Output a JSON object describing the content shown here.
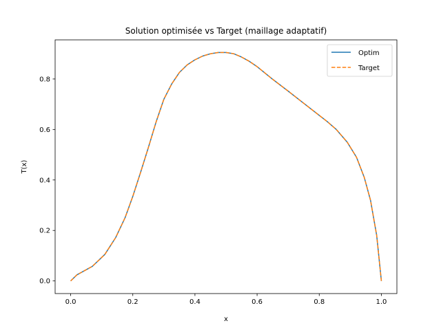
{
  "chart_data": {
    "type": "line",
    "title": "Solution optimisée vs Target (maillage adaptatif)",
    "xlabel": "x",
    "ylabel": "T(x)",
    "xlim": [
      -0.05,
      1.05
    ],
    "ylim": [
      -0.05,
      0.955
    ],
    "xticks": [
      0.0,
      0.2,
      0.4,
      0.6,
      0.8,
      1.0
    ],
    "xtick_labels": [
      "0.0",
      "0.2",
      "0.4",
      "0.6",
      "0.8",
      "1.0"
    ],
    "yticks": [
      0.0,
      0.2,
      0.4,
      0.6,
      0.8
    ],
    "ytick_labels": [
      "0.0",
      "0.2",
      "0.4",
      "0.6",
      "0.8"
    ],
    "grid": false,
    "legend_position": "top-right",
    "series": [
      {
        "name": "Optim",
        "color": "#1f77b4",
        "style": "solid",
        "x": [
          0.0,
          0.02,
          0.07,
          0.11,
          0.145,
          0.175,
          0.2,
          0.225,
          0.25,
          0.275,
          0.3,
          0.325,
          0.35,
          0.375,
          0.4,
          0.425,
          0.45,
          0.475,
          0.5,
          0.525,
          0.55,
          0.575,
          0.6,
          0.65,
          0.7,
          0.75,
          0.8,
          0.825,
          0.855,
          0.89,
          0.92,
          0.945,
          0.965,
          0.985,
          1.0
        ],
        "y": [
          0.0,
          0.024,
          0.058,
          0.105,
          0.172,
          0.25,
          0.335,
          0.43,
          0.528,
          0.63,
          0.72,
          0.78,
          0.826,
          0.856,
          0.876,
          0.891,
          0.9,
          0.905,
          0.905,
          0.9,
          0.887,
          0.87,
          0.849,
          0.799,
          0.752,
          0.704,
          0.656,
          0.632,
          0.6,
          0.55,
          0.49,
          0.41,
          0.32,
          0.18,
          0.0
        ]
      },
      {
        "name": "Target",
        "color": "#ff7f0e",
        "style": "dashed",
        "x": [
          0.0,
          0.02,
          0.07,
          0.11,
          0.145,
          0.175,
          0.2,
          0.225,
          0.25,
          0.275,
          0.3,
          0.325,
          0.35,
          0.375,
          0.4,
          0.425,
          0.45,
          0.475,
          0.5,
          0.525,
          0.55,
          0.575,
          0.6,
          0.65,
          0.7,
          0.75,
          0.8,
          0.825,
          0.855,
          0.89,
          0.92,
          0.945,
          0.965,
          0.985,
          1.0
        ],
        "y": [
          0.0,
          0.024,
          0.058,
          0.105,
          0.172,
          0.25,
          0.335,
          0.43,
          0.528,
          0.63,
          0.72,
          0.78,
          0.826,
          0.856,
          0.876,
          0.891,
          0.9,
          0.905,
          0.905,
          0.9,
          0.887,
          0.87,
          0.849,
          0.799,
          0.752,
          0.704,
          0.656,
          0.632,
          0.6,
          0.55,
          0.49,
          0.41,
          0.32,
          0.18,
          0.0
        ]
      }
    ]
  }
}
